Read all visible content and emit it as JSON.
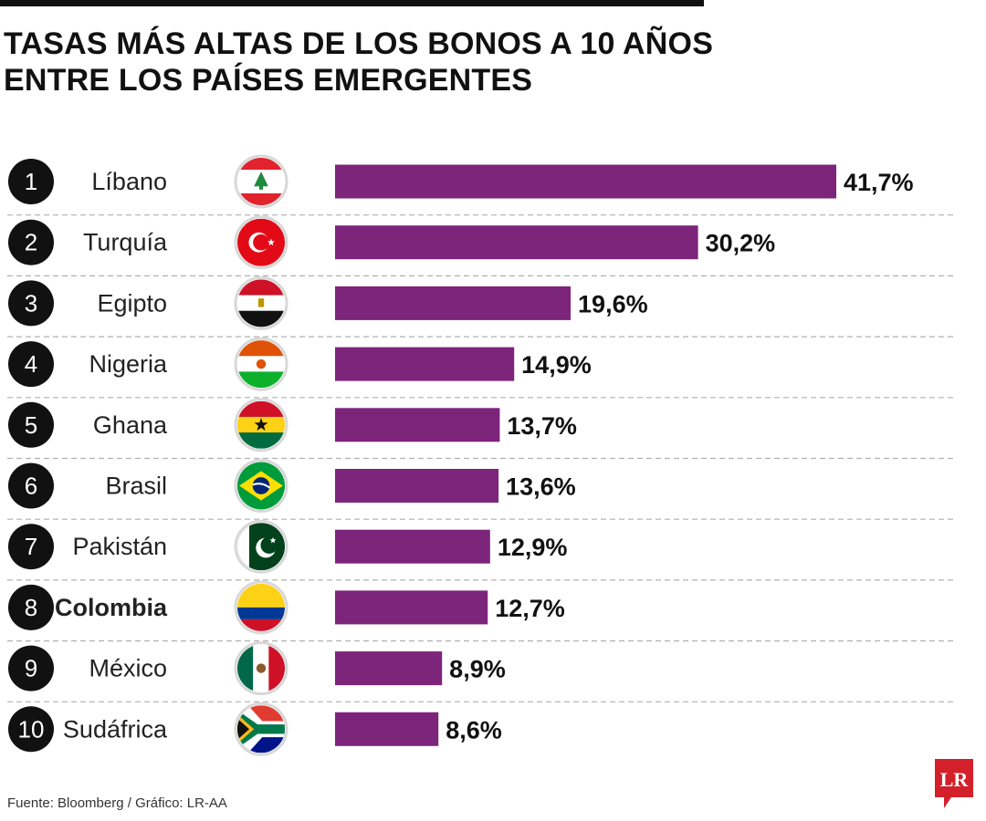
{
  "title_lines": [
    "TASAS MÁS ALTAS DE LOS BONOS A 10 AÑOS",
    "ENTRE LOS PAÍSES EMERGENTES"
  ],
  "source": "Fuente: Bloomberg / Gráfico: LR-AA",
  "logo_text": "LR",
  "colors": {
    "bar": "#7d247b",
    "rank_circle": "#111111",
    "divider": "#b0b0b0",
    "logo": "#d3202a"
  },
  "chart_data": {
    "type": "bar",
    "orientation": "horizontal",
    "highlight": "Colombia",
    "categories": [
      "Líbano",
      "Turquía",
      "Egipto",
      "Nigeria",
      "Ghana",
      "Brasil",
      "Pakistán",
      "Colombia",
      "México",
      "Sudáfrica"
    ],
    "ranks": [
      "1",
      "2",
      "3",
      "4",
      "5",
      "6",
      "7",
      "8",
      "9",
      "10"
    ],
    "values": [
      41.7,
      30.2,
      19.6,
      14.9,
      13.7,
      13.6,
      12.9,
      12.7,
      8.9,
      8.6
    ],
    "labels": [
      "41,7%",
      "30,2%",
      "19,6%",
      "14,9%",
      "13,7%",
      "13,6%",
      "12,9%",
      "12,7%",
      "8,9%",
      "8,6%"
    ],
    "flags": [
      "lebanon-flag-icon",
      "turkey-flag-icon",
      "egypt-flag-icon",
      "niger-flag-icon",
      "ghana-flag-icon",
      "brazil-flag-icon",
      "pakistan-flag-icon",
      "colombia-flag-icon",
      "mexico-flag-icon",
      "south-africa-flag-icon"
    ],
    "grid": false,
    "legend": "none"
  }
}
